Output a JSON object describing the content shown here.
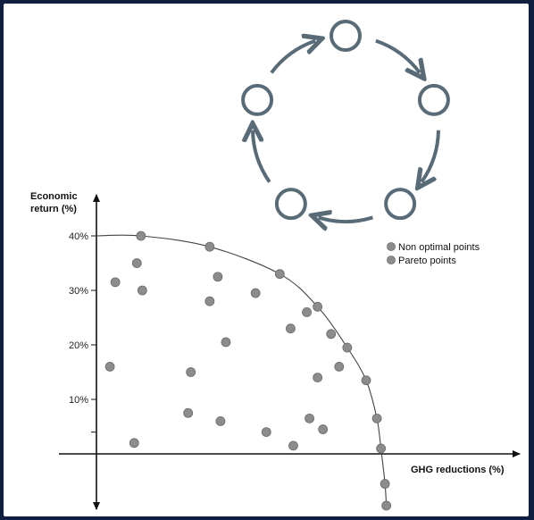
{
  "chart_data": {
    "type": "scatter",
    "ylabel_line1": "Economic",
    "ylabel_line2": "return (%)",
    "xlabel": "GHG reductions (%)",
    "yticks": [
      {
        "label": "40%",
        "value": 40
      },
      {
        "label": "30%",
        "value": 30
      },
      {
        "label": "20%",
        "value": 20
      },
      {
        "label": "10%",
        "value": 10
      }
    ],
    "legend": {
      "placement": "top-right",
      "entries": [
        "Non optimal points",
        "Pareto points"
      ]
    },
    "point_color": "#8c8c8c",
    "axis_color": "#111111",
    "non_optimal_points": [
      {
        "x": 15,
        "y": 35
      },
      {
        "x": 7,
        "y": 31.5
      },
      {
        "x": 17,
        "y": 30
      },
      {
        "x": 5,
        "y": 16
      },
      {
        "x": 14,
        "y": 2
      },
      {
        "x": 42,
        "y": 28
      },
      {
        "x": 45,
        "y": 32.5
      },
      {
        "x": 59,
        "y": 29.5
      },
      {
        "x": 48,
        "y": 20.5
      },
      {
        "x": 78,
        "y": 26
      },
      {
        "x": 72,
        "y": 23
      },
      {
        "x": 35,
        "y": 15
      },
      {
        "x": 34,
        "y": 7.5
      },
      {
        "x": 46,
        "y": 6
      },
      {
        "x": 63,
        "y": 4
      },
      {
        "x": 73,
        "y": 1.5
      },
      {
        "x": 79,
        "y": 6.5
      },
      {
        "x": 84,
        "y": 4.5
      },
      {
        "x": 87,
        "y": 22
      },
      {
        "x": 90,
        "y": 16
      },
      {
        "x": 82,
        "y": 14
      }
    ],
    "pareto_points": [
      {
        "x": 16.5,
        "y": 40
      },
      {
        "x": 42,
        "y": 38
      },
      {
        "x": 68,
        "y": 33
      },
      {
        "x": 82,
        "y": 27
      },
      {
        "x": 93,
        "y": 19.5
      },
      {
        "x": 100,
        "y": 13.5
      },
      {
        "x": 104,
        "y": 6.5
      },
      {
        "x": 105.5,
        "y": 1
      },
      {
        "x": 107,
        "y": -5.5
      },
      {
        "x": 107.5,
        "y": -9.5
      }
    ],
    "xlim": [
      0,
      110
    ],
    "ylim": [
      -11,
      45
    ]
  },
  "cycle_diagram": {
    "color": "#5a6b78",
    "node_count": 5
  }
}
